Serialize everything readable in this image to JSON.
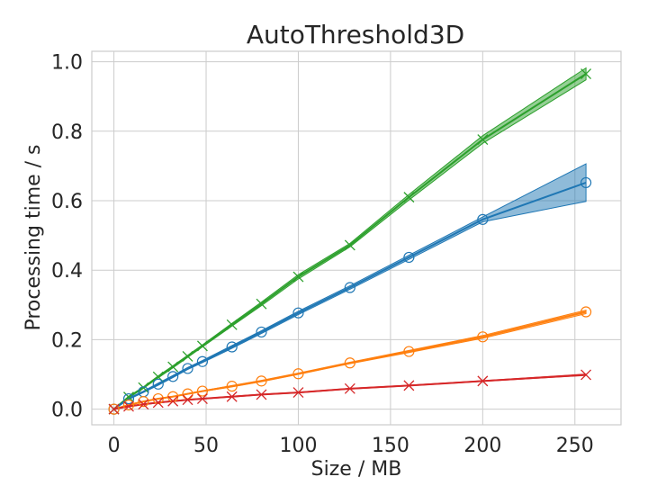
{
  "chart_data": {
    "type": "line",
    "title": "AutoThreshold3D",
    "xlabel": "Size / MB",
    "ylabel": "Processing time / s",
    "xlim": [
      -12,
      275
    ],
    "ylim": [
      -0.045,
      1.03
    ],
    "xticks": [
      0,
      50,
      100,
      150,
      200,
      250
    ],
    "yticks": [
      0.0,
      0.2,
      0.4,
      0.6,
      0.8,
      1.0
    ],
    "xtick_labels": [
      "0",
      "50",
      "100",
      "150",
      "200",
      "250"
    ],
    "ytick_labels": [
      "0.0",
      "0.2",
      "0.4",
      "0.6",
      "0.8",
      "1.0"
    ],
    "grid": true,
    "legend": "none",
    "series": [
      {
        "color": "#2ca02c",
        "marker": "x",
        "x": [
          0,
          8,
          16,
          24,
          32,
          40,
          48,
          64,
          80,
          100,
          128,
          160,
          200,
          256
        ],
        "y": [
          0.0,
          0.035,
          0.062,
          0.093,
          0.122,
          0.152,
          0.182,
          0.243,
          0.303,
          0.381,
          0.472,
          0.61,
          0.776,
          0.965
        ],
        "band_lo": [
          0.0,
          0.033,
          0.06,
          0.09,
          0.119,
          0.149,
          0.179,
          0.239,
          0.298,
          0.375,
          0.467,
          0.602,
          0.765,
          0.948
        ],
        "band_hi": [
          0.0,
          0.037,
          0.064,
          0.096,
          0.125,
          0.155,
          0.185,
          0.247,
          0.308,
          0.387,
          0.477,
          0.618,
          0.787,
          0.982
        ]
      },
      {
        "color": "#1f77b4",
        "marker": "o",
        "x": [
          0,
          8,
          16,
          24,
          32,
          40,
          48,
          64,
          80,
          100,
          128,
          160,
          200,
          256
        ],
        "y": [
          0.0,
          0.03,
          0.05,
          0.072,
          0.094,
          0.117,
          0.137,
          0.179,
          0.222,
          0.277,
          0.35,
          0.437,
          0.546,
          0.652
        ],
        "band_lo": [
          0.0,
          0.028,
          0.048,
          0.069,
          0.091,
          0.114,
          0.134,
          0.175,
          0.218,
          0.272,
          0.345,
          0.431,
          0.539,
          0.598
        ],
        "band_hi": [
          0.0,
          0.032,
          0.052,
          0.075,
          0.097,
          0.12,
          0.14,
          0.183,
          0.226,
          0.282,
          0.355,
          0.443,
          0.553,
          0.706
        ]
      },
      {
        "color": "#ff7f0e",
        "marker": "o",
        "x": [
          0,
          8,
          16,
          24,
          32,
          40,
          48,
          64,
          80,
          100,
          128,
          160,
          200,
          256
        ],
        "y": [
          0.0,
          0.012,
          0.022,
          0.03,
          0.036,
          0.044,
          0.052,
          0.066,
          0.081,
          0.102,
          0.133,
          0.166,
          0.208,
          0.28
        ],
        "band_lo": [
          0.0,
          0.011,
          0.021,
          0.029,
          0.035,
          0.043,
          0.051,
          0.064,
          0.079,
          0.1,
          0.131,
          0.163,
          0.204,
          0.275
        ],
        "band_hi": [
          0.0,
          0.013,
          0.023,
          0.031,
          0.037,
          0.045,
          0.053,
          0.068,
          0.083,
          0.104,
          0.135,
          0.169,
          0.212,
          0.285
        ]
      },
      {
        "color": "#d62728",
        "marker": "x",
        "x": [
          0,
          8,
          16,
          24,
          32,
          40,
          48,
          64,
          80,
          100,
          128,
          160,
          200,
          256
        ],
        "y": [
          0.0,
          0.008,
          0.014,
          0.019,
          0.023,
          0.027,
          0.03,
          0.036,
          0.042,
          0.048,
          0.059,
          0.068,
          0.081,
          0.099
        ],
        "band_lo": [
          0.0,
          0.007,
          0.013,
          0.018,
          0.022,
          0.026,
          0.029,
          0.035,
          0.041,
          0.047,
          0.058,
          0.067,
          0.08,
          0.097
        ],
        "band_hi": [
          0.0,
          0.009,
          0.015,
          0.02,
          0.024,
          0.028,
          0.031,
          0.037,
          0.043,
          0.049,
          0.06,
          0.069,
          0.082,
          0.101
        ]
      }
    ]
  }
}
